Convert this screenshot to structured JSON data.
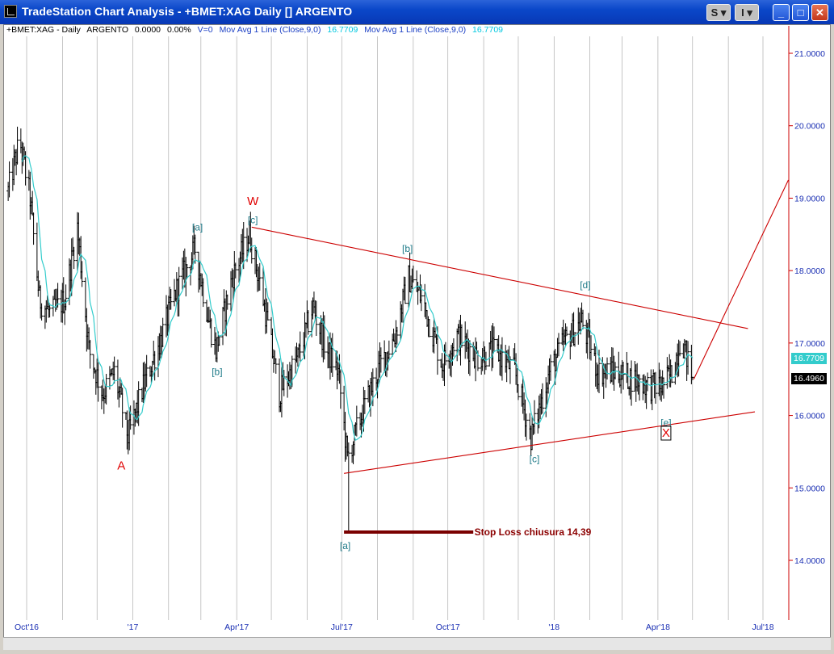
{
  "window": {
    "title": "TradeStation Chart Analysis - +BMET:XAG Daily [] ARGENTO",
    "btn_s": "S ▾",
    "btn_i": "I ▾",
    "minimize": "_",
    "maximize": "□",
    "close": "✕"
  },
  "status": {
    "symbol": "+BMET:XAG - Daily",
    "name": "ARGENTO",
    "change": "0.0000",
    "pct": "0.00%",
    "volume": "V=0",
    "ma1_label": "Mov Avg 1 Line (Close,9,0)",
    "ma1_value": "16.7709",
    "ma2_label": "Mov Avg 1 Line (Close,9,0)",
    "ma2_value": "16.7709"
  },
  "colors": {
    "price_bar": "#000000",
    "moving_average": "#33cccc",
    "axis_text": "#1a2fb3",
    "grid": "#a0a0a0",
    "trendline": "#cc0000",
    "wave_label": "#1e7a88",
    "ma_tag_bg": "#33cccc",
    "last_tag_bg": "#000000",
    "stop_line": "#7a0000"
  },
  "price_tags": {
    "ma": "16.7709",
    "last": "16.4960"
  },
  "chart_data": {
    "type": "candlestick-bars",
    "symbol": "+BMET:XAG",
    "interval": "Daily",
    "ylim": [
      13.2,
      21.6
    ],
    "y_ticks": [
      "21.0000",
      "20.0000",
      "19.0000",
      "18.0000",
      "17.0000",
      "16.0000",
      "15.0000",
      "14.0000"
    ],
    "x_ticks": [
      "Oct'16",
      "'17",
      "Apr'17",
      "Jul'17",
      "Oct'17",
      "'18",
      "Apr'18",
      "Jul'18"
    ],
    "grid": "vertical",
    "series": [
      {
        "name": "Mov Avg 1 Line (Close,9,0)",
        "values_key": "ma"
      }
    ],
    "close_path": [
      [
        "2016-09-15",
        19.1
      ],
      [
        "2016-09-25",
        19.8
      ],
      [
        "2016-10-04",
        19.0
      ],
      [
        "2016-10-12",
        17.6
      ],
      [
        "2016-10-22",
        17.4
      ],
      [
        "2016-11-03",
        17.6
      ],
      [
        "2016-11-14",
        18.6
      ],
      [
        "2016-11-24",
        16.9
      ],
      [
        "2016-12-06",
        16.3
      ],
      [
        "2016-12-16",
        16.6
      ],
      [
        "2016-12-28",
        15.7
      ],
      [
        "2017-01-10",
        16.4
      ],
      [
        "2017-01-24",
        17.0
      ],
      [
        "2017-02-07",
        17.7
      ],
      [
        "2017-02-24",
        18.3
      ],
      [
        "2017-03-08",
        17.3
      ],
      [
        "2017-03-14",
        16.9
      ],
      [
        "2017-03-28",
        17.9
      ],
      [
        "2017-04-12",
        18.5
      ],
      [
        "2017-04-24",
        17.6
      ],
      [
        "2017-05-08",
        16.3
      ],
      [
        "2017-05-24",
        16.8
      ],
      [
        "2017-06-06",
        17.5
      ],
      [
        "2017-06-18",
        16.9
      ],
      [
        "2017-06-28",
        16.6
      ],
      [
        "2017-07-06",
        15.4
      ],
      [
        "2017-07-18",
        16.0
      ],
      [
        "2017-08-01",
        16.6
      ],
      [
        "2017-08-16",
        17.1
      ],
      [
        "2017-08-28",
        17.9
      ],
      [
        "2017-09-09",
        17.6
      ],
      [
        "2017-09-26",
        16.7
      ],
      [
        "2017-10-09",
        17.1
      ],
      [
        "2017-10-27",
        16.8
      ],
      [
        "2017-11-11",
        16.9
      ],
      [
        "2017-11-28",
        16.6
      ],
      [
        "2017-12-12",
        15.7
      ],
      [
        "2017-12-28",
        16.6
      ],
      [
        "2018-01-09",
        17.0
      ],
      [
        "2018-01-25",
        17.3
      ],
      [
        "2018-02-08",
        16.6
      ],
      [
        "2018-02-23",
        16.6
      ],
      [
        "2018-03-12",
        16.5
      ],
      [
        "2018-03-24",
        16.4
      ],
      [
        "2018-04-04",
        16.4
      ],
      [
        "2018-04-14",
        16.6
      ],
      [
        "2018-04-21",
        17.1
      ],
      [
        "2018-05-01",
        16.5
      ]
    ],
    "trendlines": [
      {
        "name": "upper",
        "from": [
          "2017-04-14",
          18.6
        ],
        "to": [
          "2018-06-18",
          17.2
        ]
      },
      {
        "name": "lower",
        "from": [
          "2017-07-03",
          15.2
        ],
        "to": [
          "2018-06-24",
          16.05
        ]
      },
      {
        "name": "projection",
        "from": [
          "2018-05-02",
          16.5
        ],
        "to": [
          "2018-07-23",
          19.25
        ]
      },
      {
        "name": "stop-loss",
        "from": [
          "2017-07-03",
          14.39
        ],
        "to": [
          "2017-10-23",
          14.39
        ]
      }
    ],
    "stop_loss_level": 14.39,
    "annotations": [
      {
        "text": "A",
        "date": "2016-12-22",
        "price": 15.3,
        "color": "red"
      },
      {
        "text": "[a]",
        "date": "2017-02-26",
        "price": 18.6,
        "color": "teal"
      },
      {
        "text": "[b]",
        "date": "2017-03-15",
        "price": 16.6,
        "color": "teal"
      },
      {
        "text": "W",
        "date": "2017-04-15",
        "price": 18.95,
        "color": "red"
      },
      {
        "text": "[c]",
        "date": "2017-04-15",
        "price": 18.7,
        "color": "teal"
      },
      {
        "text": "[a]",
        "date": "2017-07-04",
        "price": 14.2,
        "color": "teal"
      },
      {
        "text": "[b]",
        "date": "2017-08-27",
        "price": 18.3,
        "color": "teal"
      },
      {
        "text": "[c]",
        "date": "2017-12-15",
        "price": 15.4,
        "color": "teal"
      },
      {
        "text": "[d]",
        "date": "2018-01-28",
        "price": 17.8,
        "color": "teal"
      },
      {
        "text": "[e]",
        "date": "2018-04-08",
        "price": 15.9,
        "color": "teal"
      },
      {
        "text": "X",
        "date": "2018-04-08",
        "price": 15.75,
        "color": "red",
        "boxed": true
      },
      {
        "text": "Stop Loss chiusura 14,39",
        "date": "2017-11-07",
        "price": 14.39,
        "color": "darkred"
      }
    ]
  }
}
